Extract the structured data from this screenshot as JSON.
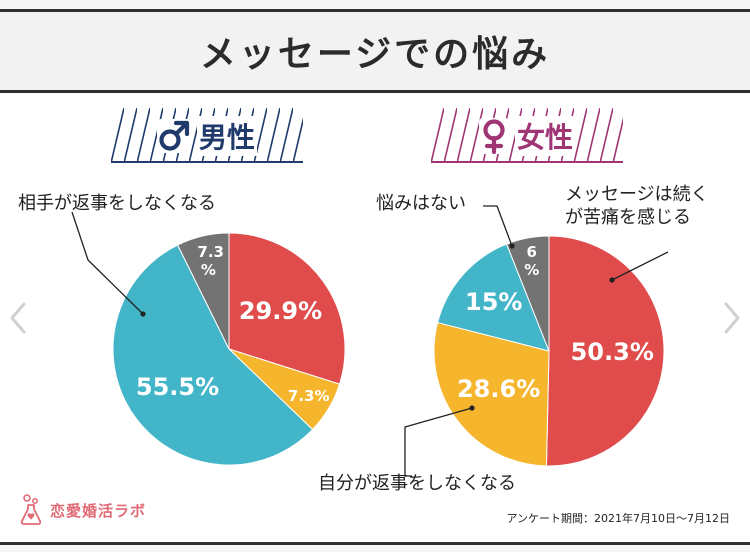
{
  "title": "メッセージでの悩み",
  "male": {
    "symbol": "♂",
    "label": "男性",
    "callout_left": "相手が返事をしなくなる"
  },
  "female": {
    "symbol": "♀",
    "label": "女性",
    "callout_none": "悩みはない",
    "callout_pain_line1": "メッセージは続く",
    "callout_pain_line2": "が苦痛を感じる",
    "callout_self": "自分が返事をしなくなる"
  },
  "chart_data": [
    {
      "type": "pie",
      "title": "男性",
      "slices": [
        {
          "value": 29.9,
          "label": "29.9%",
          "color": "#e04b4b"
        },
        {
          "value": 7.3,
          "label": "7.3%",
          "color": "#f5b52d"
        },
        {
          "value": 55.5,
          "label": "55.5%",
          "color": "#42b5c8"
        },
        {
          "value": 7.3,
          "label": "7.3\n%",
          "color": "#737373"
        }
      ]
    },
    {
      "type": "pie",
      "title": "女性",
      "slices": [
        {
          "value": 50.3,
          "label": "50.3%",
          "color": "#e04b4b"
        },
        {
          "value": 28.6,
          "label": "28.6%",
          "color": "#f5b52d"
        },
        {
          "value": 15,
          "label": "15%",
          "color": "#42b5c8"
        },
        {
          "value": 6,
          "label": "6\n%",
          "color": "#737373"
        }
      ]
    }
  ],
  "footer": {
    "logo_text": "恋愛婚活ラボ",
    "survey_period": "アンケート期間：2021年7月10日～7月12日"
  },
  "colors": {
    "red": "#e04b4b",
    "yellow": "#f5b52d",
    "blue": "#42b5c8",
    "gray": "#737373",
    "male_accent": "#1f3a6b",
    "female_accent": "#a03575",
    "logo": "#e26a74"
  }
}
